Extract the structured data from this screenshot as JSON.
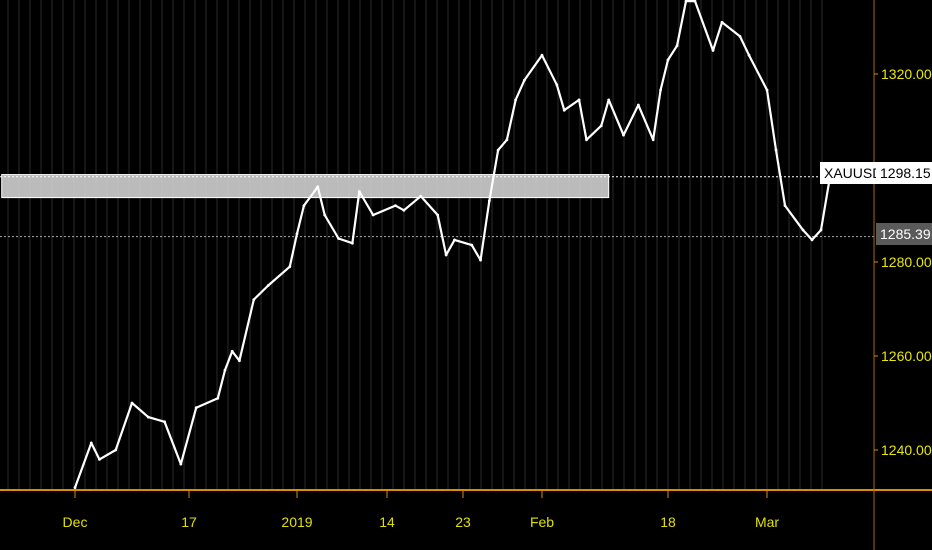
{
  "chart_data": {
    "type": "line",
    "symbol": "XAUUSD",
    "last_price_label": "1298.15",
    "current_price_label": "1285.39",
    "ylim": [
      1230,
      1336
    ],
    "y_ticks": [
      {
        "value": 1320,
        "label": "1320.00"
      },
      {
        "value": 1280,
        "label": "1280.00"
      },
      {
        "value": 1260,
        "label": "1260.00"
      },
      {
        "value": 1240,
        "label": "1240.00"
      }
    ],
    "x_ticks": [
      {
        "date": "2018-12-03",
        "label": "Dec"
      },
      {
        "date": "2018-12-17",
        "label": "17"
      },
      {
        "date": "2019-01-01",
        "label": "2019"
      },
      {
        "date": "2019-01-14",
        "label": "14"
      },
      {
        "date": "2019-01-23",
        "label": "23"
      },
      {
        "date": "2019-02-01",
        "label": "Feb"
      },
      {
        "date": "2019-02-18",
        "label": "18"
      },
      {
        "date": "2019-03-01",
        "label": "Mar"
      }
    ],
    "zone": {
      "from_date": "2018-11-24",
      "to_date": "2019-02-10",
      "low": 1293.7,
      "high": 1298.6
    },
    "horizontal_lines": [
      1298.15,
      1285.39
    ],
    "grid": true,
    "colors": {
      "background": "#000000",
      "price": "#ffffff",
      "axis": "#e08a00",
      "labels": "#e8e800",
      "zone": "#cfcfcf"
    },
    "series": [
      {
        "points": [
          [
            "2018-12-03",
            1232
          ],
          [
            "2018-12-05",
            1241.5
          ],
          [
            "2018-12-06",
            1238
          ],
          [
            "2018-12-08",
            1240
          ],
          [
            "2018-12-10",
            1250
          ],
          [
            "2018-12-12",
            1247
          ],
          [
            "2018-12-14",
            1246
          ],
          [
            "2018-12-16",
            1237
          ],
          [
            "2018-12-18",
            1249
          ],
          [
            "2018-12-21",
            1251
          ],
          [
            "2018-12-22",
            1257
          ],
          [
            "2018-12-23",
            1261
          ],
          [
            "2018-12-24",
            1259
          ],
          [
            "2018-12-26",
            1272
          ],
          [
            "2018-12-28",
            1275
          ],
          [
            "2018-12-31",
            1279
          ],
          [
            "2019-01-01",
            1286
          ],
          [
            "2019-01-02",
            1292
          ],
          [
            "2019-01-04",
            1296
          ],
          [
            "2019-01-05",
            1290
          ],
          [
            "2019-01-07",
            1285
          ],
          [
            "2019-01-09",
            1284
          ],
          [
            "2019-01-10",
            1295
          ],
          [
            "2019-01-12",
            1290
          ],
          [
            "2019-01-15",
            1292
          ],
          [
            "2019-01-16",
            1291
          ],
          [
            "2019-01-18",
            1294
          ],
          [
            "2019-01-20",
            1290
          ],
          [
            "2019-01-21",
            1281.5
          ],
          [
            "2019-01-22",
            1284.7
          ],
          [
            "2019-01-24",
            1283.6
          ],
          [
            "2019-01-25",
            1280.4
          ],
          [
            "2019-01-26",
            1293
          ],
          [
            "2019-01-27",
            1303.8
          ],
          [
            "2019-01-28",
            1306
          ],
          [
            "2019-01-29",
            1314.5
          ],
          [
            "2019-01-30",
            1318.7
          ],
          [
            "2019-02-01",
            1324
          ],
          [
            "2019-02-03",
            1317.7
          ],
          [
            "2019-02-04",
            1312.3
          ],
          [
            "2019-02-06",
            1314.5
          ],
          [
            "2019-02-07",
            1306
          ],
          [
            "2019-02-09",
            1309
          ],
          [
            "2019-02-10",
            1314.5
          ],
          [
            "2019-02-12",
            1307
          ],
          [
            "2019-02-14",
            1313.4
          ],
          [
            "2019-02-16",
            1306
          ],
          [
            "2019-02-17",
            1316.6
          ],
          [
            "2019-02-18",
            1323
          ],
          [
            "2019-02-19",
            1326
          ],
          [
            "2019-02-20",
            1335.5
          ],
          [
            "2019-02-21",
            1335.5
          ],
          [
            "2019-02-23",
            1325
          ],
          [
            "2019-02-24",
            1331
          ],
          [
            "2019-02-26",
            1328
          ],
          [
            "2019-02-27",
            1324
          ],
          [
            "2019-03-01",
            1316.6
          ],
          [
            "2019-03-02",
            1303.8
          ],
          [
            "2019-03-03",
            1292
          ],
          [
            "2019-03-05",
            1286.8
          ],
          [
            "2019-03-06",
            1284.7
          ],
          [
            "2019-03-07",
            1286.8
          ],
          [
            "2019-03-08",
            1298.15
          ]
        ]
      }
    ]
  }
}
